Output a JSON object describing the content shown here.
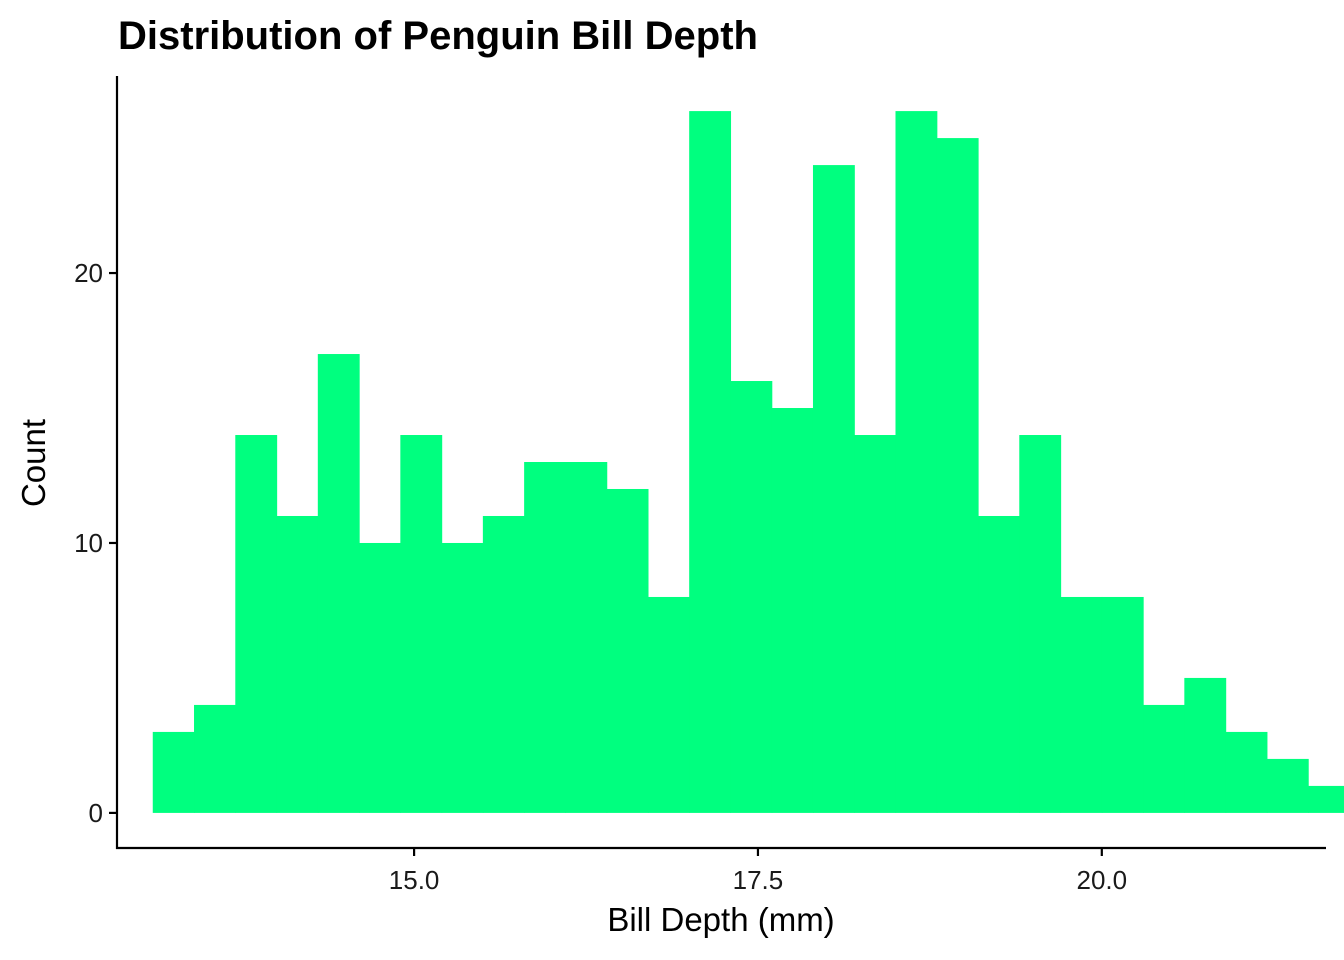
{
  "chart_data": {
    "type": "bar",
    "title": "Distribution of Penguin Bill Depth",
    "xlabel": "Bill Depth (mm)",
    "ylabel": "Count",
    "bar_color": "#00FF7F",
    "grid": false,
    "x_ticks": [
      {
        "value": 15.0,
        "label": "15.0"
      },
      {
        "value": 17.5,
        "label": "17.5"
      },
      {
        "value": 20.0,
        "label": "20.0"
      }
    ],
    "y_ticks": [
      {
        "value": 0,
        "label": "0"
      },
      {
        "value": 10,
        "label": "10"
      },
      {
        "value": 20,
        "label": "20"
      }
    ],
    "xlim": [
      12.84,
      21.63
    ],
    "ylim": [
      -1.3,
      27.3
    ],
    "bins": [
      {
        "start": 13.1,
        "end": 13.4,
        "count": 3
      },
      {
        "start": 13.4,
        "end": 13.7,
        "count": 4
      },
      {
        "start": 13.7,
        "end": 14.0,
        "count": 14
      },
      {
        "start": 14.0,
        "end": 14.3,
        "count": 11
      },
      {
        "start": 14.3,
        "end": 14.6,
        "count": 17
      },
      {
        "start": 14.6,
        "end": 14.9,
        "count": 10
      },
      {
        "start": 14.9,
        "end": 15.2,
        "count": 14
      },
      {
        "start": 15.2,
        "end": 15.5,
        "count": 10
      },
      {
        "start": 15.5,
        "end": 15.8,
        "count": 11
      },
      {
        "start": 15.8,
        "end": 16.1,
        "count": 13
      },
      {
        "start": 16.1,
        "end": 16.4,
        "count": 13
      },
      {
        "start": 16.4,
        "end": 16.7,
        "count": 12
      },
      {
        "start": 16.7,
        "end": 17.0,
        "count": 8
      },
      {
        "start": 17.0,
        "end": 17.3,
        "count": 26
      },
      {
        "start": 17.3,
        "end": 17.6,
        "count": 16
      },
      {
        "start": 17.6,
        "end": 17.9,
        "count": 15
      },
      {
        "start": 17.9,
        "end": 18.2,
        "count": 24
      },
      {
        "start": 18.2,
        "end": 18.5,
        "count": 14
      },
      {
        "start": 18.5,
        "end": 18.8,
        "count": 26
      },
      {
        "start": 18.8,
        "end": 19.1,
        "count": 25
      },
      {
        "start": 19.1,
        "end": 19.4,
        "count": 11
      },
      {
        "start": 19.4,
        "end": 19.7,
        "count": 14
      },
      {
        "start": 19.7,
        "end": 20.0,
        "count": 8
      },
      {
        "start": 20.0,
        "end": 20.3,
        "count": 8
      },
      {
        "start": 20.3,
        "end": 20.6,
        "count": 4
      },
      {
        "start": 20.6,
        "end": 20.9,
        "count": 5
      },
      {
        "start": 20.9,
        "end": 21.2,
        "count": 3
      },
      {
        "start": 21.2,
        "end": 21.5,
        "count": 2
      },
      {
        "start": 21.5,
        "end": 21.8,
        "count": 1
      }
    ]
  }
}
